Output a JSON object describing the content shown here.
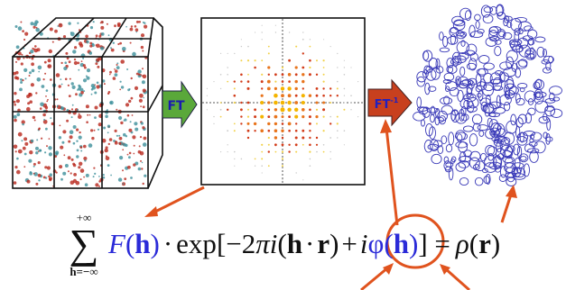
{
  "arrows": {
    "forward_label": "FT",
    "inverse_label": "FT",
    "inverse_superscript": "-1",
    "forward_color": "#5aa83a",
    "inverse_color": "#c8401e"
  },
  "equation": {
    "sum_upper": "+∞",
    "sum_lower": "h=−∞",
    "sigma": "∑",
    "F": "F",
    "h1": "h",
    "dot": "·",
    "exp": "exp",
    "bracket_open": "[−2",
    "pi": "π",
    "i1": "i",
    "h2": "h",
    "dot2": "·",
    "r1": "r",
    "plus": "+",
    "i2": "i",
    "phi": "φ",
    "h3": "h",
    "bracket_close": "] =",
    "rho": "ρ",
    "r2": "r",
    "main_color": "#2b2bd8",
    "text_color": "#111111"
  },
  "colors": {
    "callout": "#e0531e",
    "density": "#3a3ab8",
    "crystal_red": "#b8251a",
    "crystal_teal": "#3c8f9a"
  }
}
